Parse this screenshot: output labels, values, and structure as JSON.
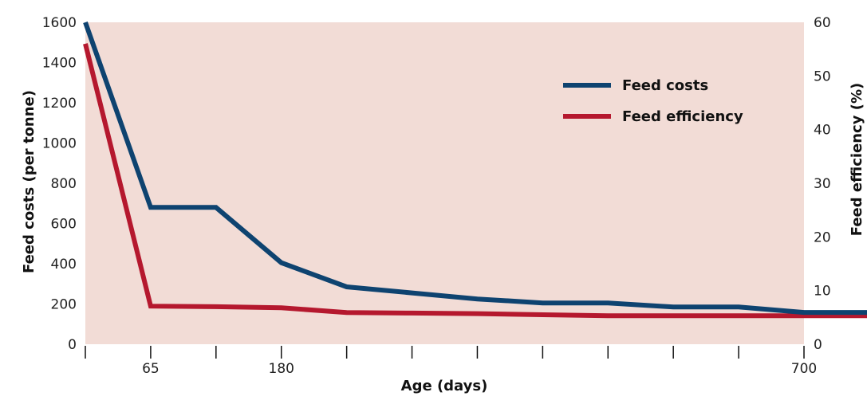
{
  "chart_data": {
    "type": "line",
    "xlabel": "Age (days)",
    "ylabel_left": "Feed costs (per tonne)",
    "ylabel_right": "Feed efficiency (%)",
    "x_ticks_labeled": [
      {
        "value": 65,
        "label": "65"
      },
      {
        "value": 180,
        "label": "180"
      },
      {
        "value": 700,
        "label": "700"
      }
    ],
    "x_unlabeled_tick_positions": [
      0,
      2,
      4,
      5,
      6,
      7,
      8,
      9,
      10,
      11
    ],
    "y_left": {
      "min": 0,
      "max": 1600,
      "ticks": [
        "0",
        "200",
        "400",
        "600",
        "800",
        "1000",
        "1200",
        "1400",
        "1600"
      ]
    },
    "y_right": {
      "min": 0,
      "max": 60,
      "ticks": [
        "0",
        "10",
        "20",
        "30",
        "40",
        "50",
        "60"
      ]
    },
    "legend_position": "top-right",
    "colors": {
      "background": "#f2dcd6",
      "feed_costs": "#0e4370",
      "feed_efficiency": "#b5182e"
    },
    "series": [
      {
        "name": "Feed costs",
        "axis": "left",
        "points": [
          {
            "i": 0,
            "v": 1600
          },
          {
            "i": 1,
            "v": 680
          },
          {
            "i": 2,
            "v": 680
          },
          {
            "i": 3,
            "v": 405
          },
          {
            "i": 4,
            "v": 285
          },
          {
            "i": 5,
            "v": 255
          },
          {
            "i": 6,
            "v": 225
          },
          {
            "i": 7,
            "v": 205
          },
          {
            "i": 8,
            "v": 205
          },
          {
            "i": 9,
            "v": 185
          },
          {
            "i": 10,
            "v": 185
          },
          {
            "i": 11,
            "v": 158
          },
          {
            "i": 12,
            "v": 158
          }
        ]
      },
      {
        "name": "Feed efficiency",
        "axis": "right",
        "points": [
          {
            "i": 0,
            "v": 56
          },
          {
            "i": 1,
            "v": 7.1
          },
          {
            "i": 2,
            "v": 7.0
          },
          {
            "i": 3,
            "v": 6.8
          },
          {
            "i": 4,
            "v": 5.9
          },
          {
            "i": 5,
            "v": 5.8
          },
          {
            "i": 6,
            "v": 5.7
          },
          {
            "i": 7,
            "v": 5.5
          },
          {
            "i": 8,
            "v": 5.3
          },
          {
            "i": 9,
            "v": 5.3
          },
          {
            "i": 10,
            "v": 5.3
          },
          {
            "i": 11,
            "v": 5.3
          },
          {
            "i": 12,
            "v": 5.3
          }
        ]
      }
    ]
  }
}
